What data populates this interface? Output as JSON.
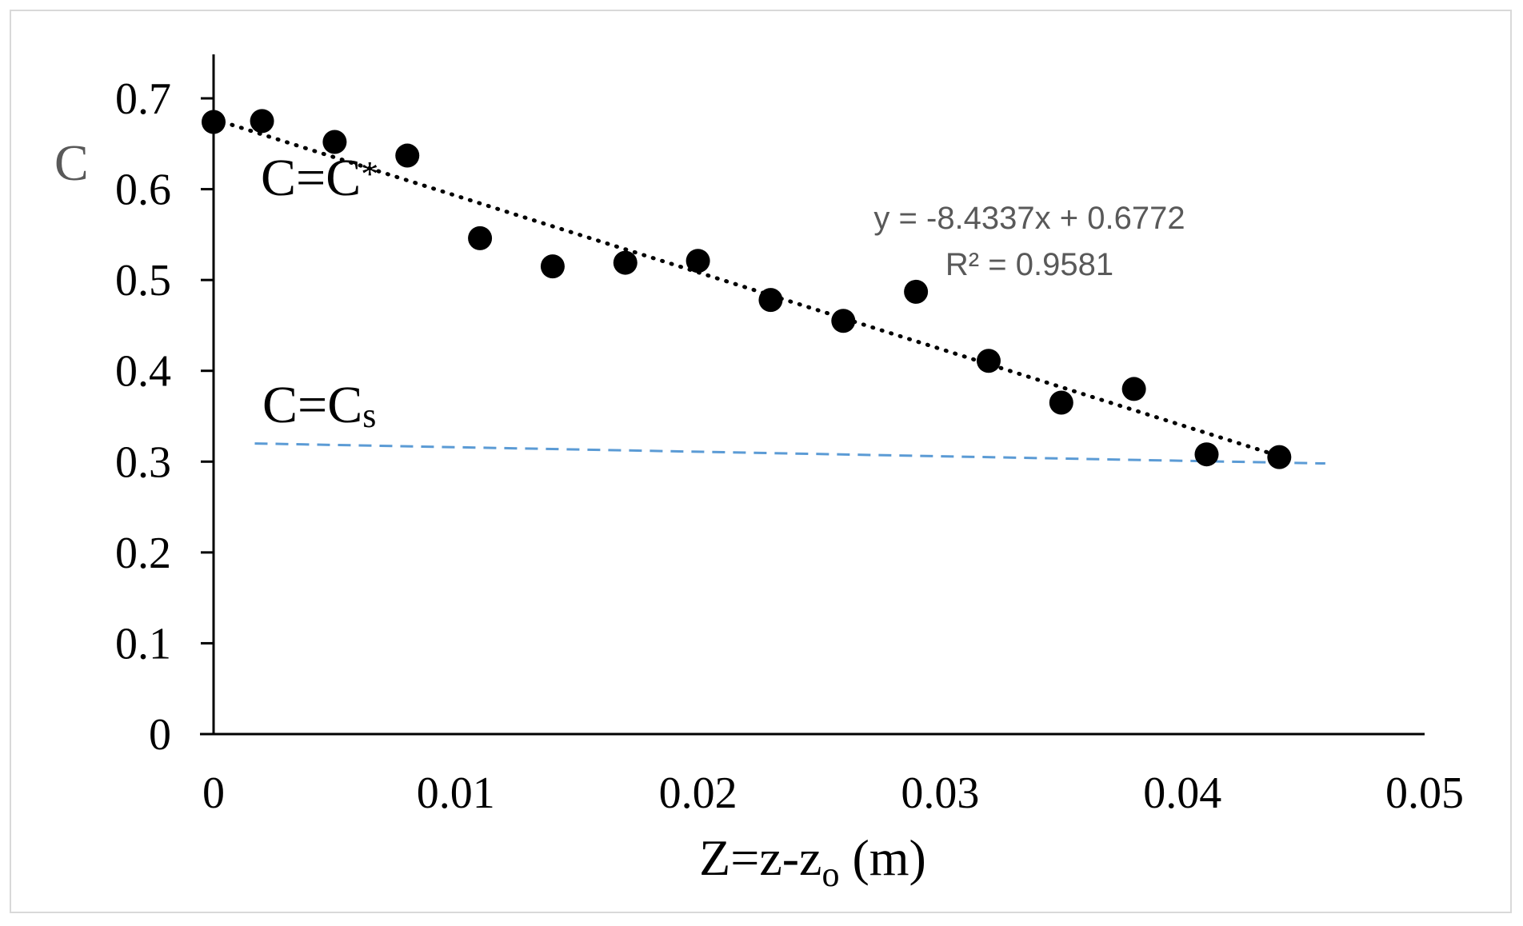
{
  "chart_data": {
    "type": "scatter",
    "title": "",
    "xlabel": {
      "main": "Z=z-z",
      "sub": "o",
      "tail": " (m)"
    },
    "ylabel": "C",
    "xlim": [
      0,
      0.05
    ],
    "ylim": [
      0,
      0.75
    ],
    "x_ticks": [
      0,
      0.01,
      0.02,
      0.03,
      0.04,
      0.05
    ],
    "x_tick_labels": [
      "0",
      "0.01",
      "0.02",
      "0.03",
      "0.04",
      "0.05"
    ],
    "y_ticks": [
      0,
      0.1,
      0.2,
      0.3,
      0.4,
      0.5,
      0.6,
      0.7
    ],
    "y_tick_labels": [
      "0",
      "0.1",
      "0.2",
      "0.3",
      "0.4",
      "0.5",
      "0.6",
      "0.7"
    ],
    "grid": false,
    "series": [
      {
        "name": "C",
        "marker": "circle",
        "color": "#000000",
        "x": [
          0,
          0.002,
          0.005,
          0.008,
          0.011,
          0.014,
          0.017,
          0.02,
          0.023,
          0.026,
          0.029,
          0.032,
          0.035,
          0.038,
          0.041,
          0.044
        ],
        "y": [
          0.674,
          0.675,
          0.652,
          0.637,
          0.546,
          0.515,
          0.519,
          0.521,
          0.478,
          0.455,
          0.487,
          0.411,
          0.365,
          0.38,
          0.308,
          0.305
        ]
      }
    ],
    "trendline": {
      "type": "linear",
      "slope": -8.4337,
      "intercept": 0.6772,
      "x_range": [
        0,
        0.044
      ],
      "style": "dotted",
      "color": "#000000",
      "equation_label": "y = -8.4337x + 0.6772",
      "r2_label": "R² = 0.9581"
    },
    "reference_line": {
      "style": "dashed",
      "color": "#5b9bd5",
      "x": [
        0.0017,
        0.0459
      ],
      "y": [
        0.32,
        0.298
      ]
    },
    "annotations": [
      {
        "text": "C=C",
        "suffix": "*",
        "suffix_style": "superscript-ish"
      },
      {
        "text": "C=C",
        "suffix": "s",
        "suffix_style": "subscript"
      }
    ]
  }
}
